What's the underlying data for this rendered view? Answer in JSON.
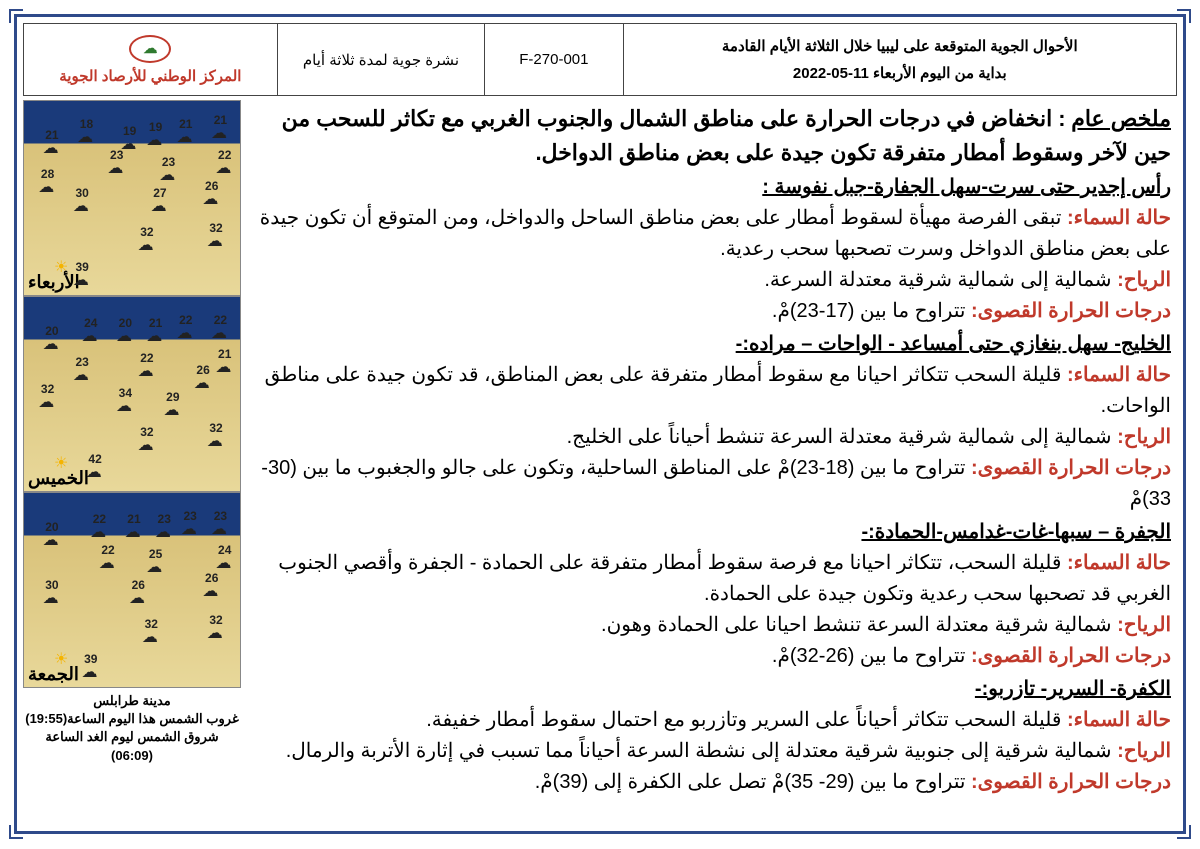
{
  "header": {
    "title_line1": "الأحوال الجوية المتوقعة على ليبيا خلال الثلاثة الأيام القادمة",
    "title_line2": "بداية من اليوم الأربعاء 11-05-2022",
    "code": "F-270-001",
    "bulletin": "نشرة جوية لمدة ثلاثة أيام",
    "org": "المركز الوطني للأرصاد الجوية"
  },
  "summary": {
    "label": "ملخص عام",
    "text": ": انخفاض في درجات الحرارة على مناطق الشمال والجنوب الغربي مع تكاثر للسحب من حين لآخر وسقوط أمطار متفرقة تكون جيدة على بعض مناطق الدواخل."
  },
  "regions": [
    {
      "title": "رأس إجدير حتى سرت-سهل الجفارة-جبل نفوسة :",
      "sky_label": "حالة السماء:",
      "sky": " تبقى الفرصة مهيأة لسقوط أمطار على بعض مناطق الساحل والدواخل، ومن المتوقع أن تكون جيدة على بعض مناطق الدواخل وسرت تصحبها سحب رعدية.",
      "wind_label": "الرياح:",
      "wind": " شمالية إلى شمالية شرقية معتدلة السرعة.",
      "temp_label": "درجات الحرارة القصوى:",
      "temp": " تتراوح ما بين (17-23)مْ."
    },
    {
      "title": "الخليج- سهل بنغازي حتى أمساعد - الواحات – مراده:-",
      "sky_label": "حالة السماء:",
      "sky": " قليلة السحب تتكاثر احيانا مع سقوط أمطار متفرقة على بعض المناطق، قد تكون جيدة على مناطق الواحات.",
      "wind_label": "الرياح:",
      "wind": " شمالية إلى شمالية شرقية معتدلة السرعة تنشط أحياناً على الخليج.",
      "temp_label": "درجات الحرارة القصوى:",
      "temp": " تتراوح ما بين (18-23)مْ على المناطق الساحلية، وتكون على جالو والجغبوب ما بين (30-33)مْ"
    },
    {
      "title": "الجفرة – سبها-غات-غدامس-الحمادة:-",
      "sky_label": "حالة السماء:",
      "sky": " قليلة السحب، تتكاثر احيانا مع فرصة سقوط أمطار متفرقة على الحمادة - الجفرة وأقصي الجنوب الغربي قد تصحبها سحب رعدية وتكون جيدة على الحمادة.",
      "wind_label": "الرياح:",
      "wind": " شمالية شرقية معتدلة السرعة تنشط احيانا على الحمادة وهون.",
      "temp_label": "درجات الحرارة القصوى:",
      "temp": " تتراوح ما بين (26-32)مْ."
    },
    {
      "title": "الكفرة- السرير- تازربو:-",
      "sky_label": "حالة السماء:",
      "sky": " قليلة السحب تتكاثر أحياناً على السرير وتازربو مع احتمال سقوط أمطار خفيفة.",
      "wind_label": "الرياح:",
      "wind": " شمالية شرقية إلى جنوبية شرقية معتدلة إلى نشطة السرعة أحياناً مما تسبب في إثارة الأتربة والرمال.",
      "temp_label": "درجات الحرارة القصوى:",
      "temp": " تتراوح ما بين (29- 35)مْ تصل على الكفرة إلى (39)مْ."
    }
  ],
  "maps": [
    {
      "day": "الأربعاء",
      "temps": [
        {
          "v": "21",
          "t": "6%",
          "r": "6%"
        },
        {
          "v": "21",
          "t": "8%",
          "r": "22%"
        },
        {
          "v": "19",
          "t": "10%",
          "r": "36%"
        },
        {
          "v": "19",
          "t": "12%",
          "r": "48%"
        },
        {
          "v": "18",
          "t": "8%",
          "r": "68%"
        },
        {
          "v": "21",
          "t": "14%",
          "r": "84%"
        },
        {
          "v": "22",
          "t": "24%",
          "r": "4%"
        },
        {
          "v": "23",
          "t": "28%",
          "r": "30%"
        },
        {
          "v": "23",
          "t": "24%",
          "r": "54%"
        },
        {
          "v": "28",
          "t": "34%",
          "r": "86%"
        },
        {
          "v": "26",
          "t": "40%",
          "r": "10%"
        },
        {
          "v": "27",
          "t": "44%",
          "r": "34%"
        },
        {
          "v": "30",
          "t": "44%",
          "r": "70%"
        },
        {
          "v": "32",
          "t": "62%",
          "r": "8%"
        },
        {
          "v": "32",
          "t": "64%",
          "r": "40%"
        },
        {
          "v": "39",
          "t": "82%",
          "r": "70%"
        }
      ]
    },
    {
      "day": "الخميس",
      "temps": [
        {
          "v": "22",
          "t": "8%",
          "r": "6%"
        },
        {
          "v": "22",
          "t": "8%",
          "r": "22%"
        },
        {
          "v": "21",
          "t": "10%",
          "r": "36%"
        },
        {
          "v": "20",
          "t": "10%",
          "r": "50%"
        },
        {
          "v": "24",
          "t": "10%",
          "r": "66%"
        },
        {
          "v": "20",
          "t": "14%",
          "r": "84%"
        },
        {
          "v": "21",
          "t": "26%",
          "r": "4%"
        },
        {
          "v": "26",
          "t": "34%",
          "r": "14%"
        },
        {
          "v": "22",
          "t": "28%",
          "r": "40%"
        },
        {
          "v": "23",
          "t": "30%",
          "r": "70%"
        },
        {
          "v": "29",
          "t": "48%",
          "r": "28%"
        },
        {
          "v": "34",
          "t": "46%",
          "r": "50%"
        },
        {
          "v": "32",
          "t": "44%",
          "r": "86%"
        },
        {
          "v": "32",
          "t": "64%",
          "r": "8%"
        },
        {
          "v": "32",
          "t": "66%",
          "r": "40%"
        },
        {
          "v": "42",
          "t": "80%",
          "r": "64%"
        }
      ]
    },
    {
      "day": "الجمعة",
      "temps": [
        {
          "v": "23",
          "t": "8%",
          "r": "6%"
        },
        {
          "v": "23",
          "t": "8%",
          "r": "20%"
        },
        {
          "v": "23",
          "t": "10%",
          "r": "32%"
        },
        {
          "v": "21",
          "t": "10%",
          "r": "46%"
        },
        {
          "v": "22",
          "t": "10%",
          "r": "62%"
        },
        {
          "v": "20",
          "t": "14%",
          "r": "84%"
        },
        {
          "v": "24",
          "t": "26%",
          "r": "4%"
        },
        {
          "v": "25",
          "t": "28%",
          "r": "36%"
        },
        {
          "v": "22",
          "t": "26%",
          "r": "58%"
        },
        {
          "v": "26",
          "t": "40%",
          "r": "10%"
        },
        {
          "v": "26",
          "t": "44%",
          "r": "44%"
        },
        {
          "v": "30",
          "t": "44%",
          "r": "84%"
        },
        {
          "v": "32",
          "t": "62%",
          "r": "8%"
        },
        {
          "v": "32",
          "t": "64%",
          "r": "38%"
        },
        {
          "v": "39",
          "t": "82%",
          "r": "66%"
        }
      ]
    }
  ],
  "suninfo": {
    "city": "مدينة طرابلس",
    "sunset": "غروب الشمس هذا اليوم الساعة(19:55)",
    "sunrise": "شروق الشمس ليوم الغد الساعة (06:09)"
  },
  "colors": {
    "frame": "#2f4a8a",
    "red": "#c0392b",
    "sea": "#1a3a7a",
    "land": "#e0cf8e"
  }
}
